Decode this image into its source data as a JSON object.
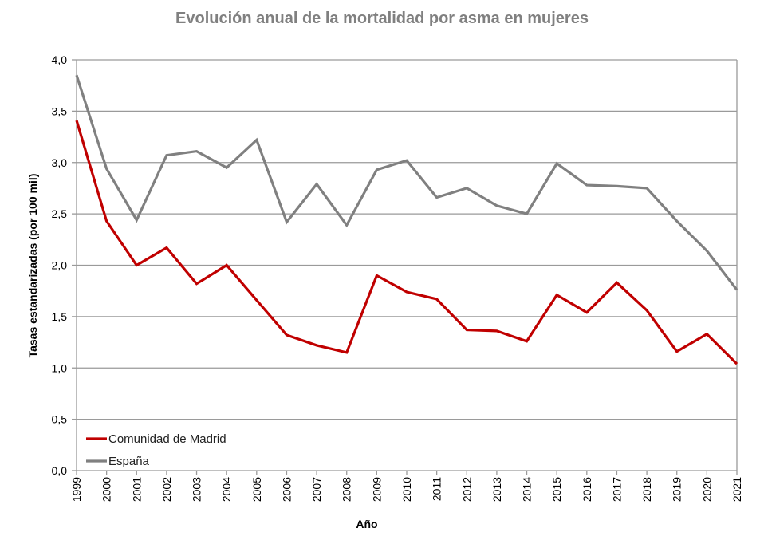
{
  "chart_data": {
    "type": "line",
    "title": "Evolución anual de la mortalidad por asma en mujeres",
    "xlabel": "Año",
    "ylabel": "Tasas estandarizadas (por 100 mil)",
    "ylim": [
      0,
      4
    ],
    "yticks": [
      "0,0",
      "0,5",
      "1,0",
      "1,5",
      "2,0",
      "2,5",
      "3,0",
      "3,5",
      "4,0"
    ],
    "ytick_values": [
      0,
      0.5,
      1,
      1.5,
      2,
      2.5,
      3,
      3.5,
      4
    ],
    "grid": true,
    "legend_position": "bottom-left",
    "categories": [
      "1999",
      "2000",
      "2001",
      "2002",
      "2003",
      "2004",
      "2005",
      "2006",
      "2007",
      "2008",
      "2009",
      "2010",
      "2011",
      "2012",
      "2013",
      "2014",
      "2015",
      "2016",
      "2017",
      "2018",
      "2019",
      "2020",
      "2021"
    ],
    "series": [
      {
        "name": "Comunidad de Madrid",
        "color": "#C00000",
        "values": [
          3.41,
          2.43,
          2.0,
          2.17,
          1.82,
          2.0,
          1.66,
          1.32,
          1.22,
          1.15,
          1.9,
          1.74,
          1.67,
          1.37,
          1.36,
          1.26,
          1.71,
          1.54,
          1.83,
          1.56,
          1.16,
          1.33,
          1.04
        ]
      },
      {
        "name": "España",
        "color": "#808080",
        "values": [
          3.85,
          2.94,
          2.44,
          3.07,
          3.11,
          2.95,
          3.22,
          2.42,
          2.79,
          2.39,
          2.93,
          3.02,
          2.66,
          2.75,
          2.58,
          2.5,
          2.99,
          2.78,
          2.77,
          2.75,
          2.43,
          2.14,
          1.76
        ]
      }
    ]
  }
}
